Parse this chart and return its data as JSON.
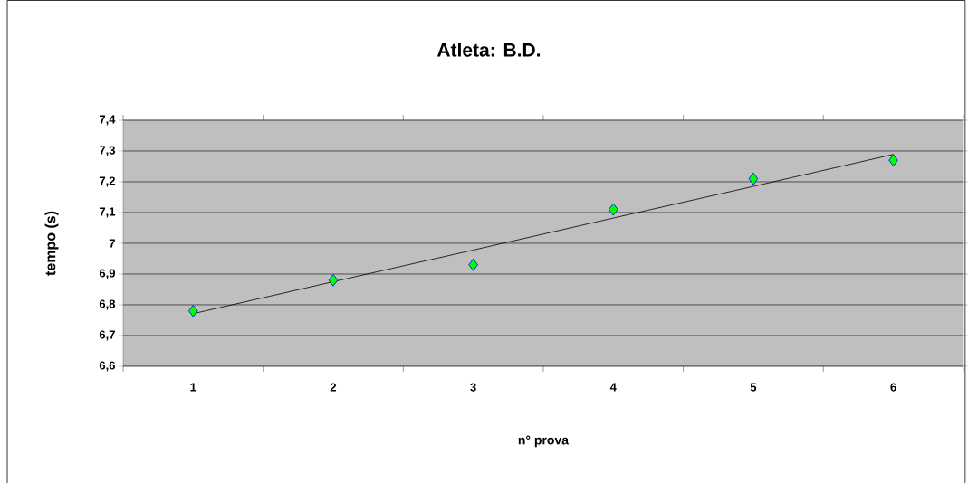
{
  "chart_data": {
    "type": "scatter",
    "title": "Atleta: B.D.",
    "xlabel": "n° prova",
    "ylabel": "tempo (s)",
    "categories": [
      "1",
      "2",
      "3",
      "4",
      "5",
      "6"
    ],
    "series": [
      {
        "color": "#00ff00",
        "values": [
          6.78,
          6.88,
          6.93,
          7.11,
          7.21,
          7.27
        ],
        "marker": "diamond"
      },
      {
        "type": "line",
        "color": "#000000",
        "values": [
          6.771,
          6.875,
          6.978,
          7.082,
          7.185,
          7.289
        ],
        "marker": "none"
      }
    ],
    "ylim": [
      6.6,
      7.4
    ],
    "yticks": [
      {
        "value": 6.6,
        "label": "6,6"
      },
      {
        "value": 6.7,
        "label": "6,7"
      },
      {
        "value": 6.8,
        "label": "6,8"
      },
      {
        "value": 6.9,
        "label": "6,9"
      },
      {
        "value": 7,
        "label": "7"
      },
      {
        "value": 7.1,
        "label": "7,1"
      },
      {
        "value": 7.2,
        "label": "7,2"
      },
      {
        "value": 7.3,
        "label": "7,3"
      },
      {
        "value": 7.4,
        "label": "7,4"
      }
    ],
    "grid": "y"
  }
}
